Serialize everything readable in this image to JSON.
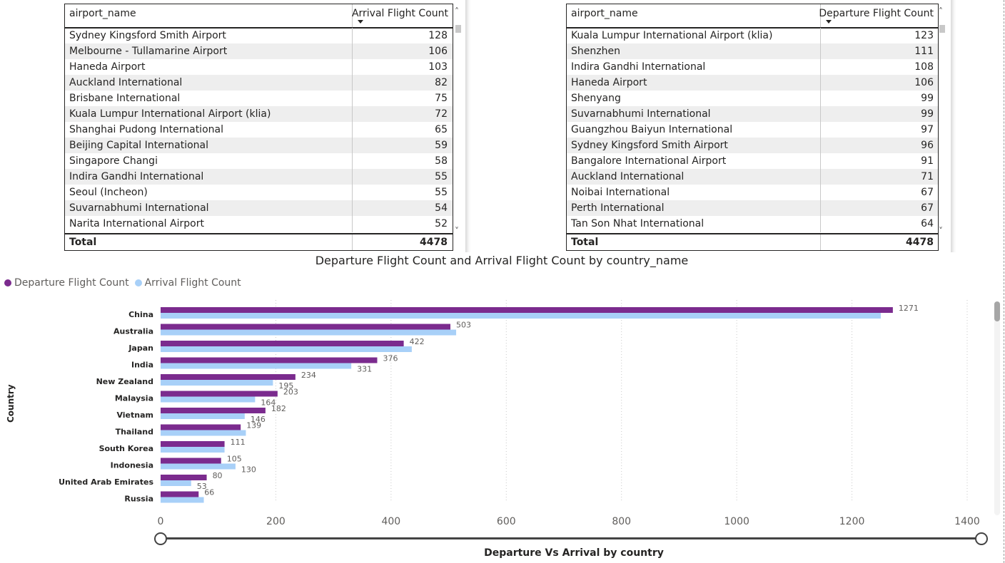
{
  "arrival_table": {
    "col_name": "airport_name",
    "col_count": "Arrival Flight Count",
    "rows": [
      {
        "name": "Sydney Kingsford Smith Airport",
        "value": "128"
      },
      {
        "name": "Melbourne - Tullamarine Airport",
        "value": "106"
      },
      {
        "name": "Haneda Airport",
        "value": "103"
      },
      {
        "name": "Auckland International",
        "value": "82"
      },
      {
        "name": "Brisbane International",
        "value": "75"
      },
      {
        "name": "Kuala Lumpur International Airport (klia)",
        "value": "72"
      },
      {
        "name": "Shanghai Pudong International",
        "value": "65"
      },
      {
        "name": "Beijing Capital International",
        "value": "59"
      },
      {
        "name": "Singapore Changi",
        "value": "58"
      },
      {
        "name": "Indira Gandhi International",
        "value": "55"
      },
      {
        "name": "Seoul (Incheon)",
        "value": "55"
      },
      {
        "name": "Suvarnabhumi International",
        "value": "54"
      },
      {
        "name": "Narita International Airport",
        "value": "52"
      }
    ],
    "total_label": "Total",
    "total_value": "4478"
  },
  "departure_table": {
    "col_name": "airport_name",
    "col_count": "Departure Flight Count",
    "rows": [
      {
        "name": "Kuala Lumpur International Airport (klia)",
        "value": "123"
      },
      {
        "name": "Shenzhen",
        "value": "111"
      },
      {
        "name": "Indira Gandhi International",
        "value": "108"
      },
      {
        "name": "Haneda Airport",
        "value": "106"
      },
      {
        "name": "Shenyang",
        "value": "99"
      },
      {
        "name": "Suvarnabhumi International",
        "value": "99"
      },
      {
        "name": "Guangzhou Baiyun International",
        "value": "97"
      },
      {
        "name": "Sydney Kingsford Smith Airport",
        "value": "96"
      },
      {
        "name": "Bangalore International Airport",
        "value": "91"
      },
      {
        "name": "Auckland International",
        "value": "71"
      },
      {
        "name": "Noibai International",
        "value": "67"
      },
      {
        "name": "Perth International",
        "value": "67"
      },
      {
        "name": "Tan Son Nhat International",
        "value": "64"
      }
    ],
    "total_label": "Total",
    "total_value": "4478"
  },
  "scroll_glyphs": {
    "up": "˄",
    "down": "˅"
  },
  "colors": {
    "departure": "#7b2b8e",
    "arrival": "#a8d0f8"
  },
  "chart_data": {
    "type": "bar",
    "orientation": "horizontal",
    "title": "Departure Flight Count and Arrival Flight Count by country_name",
    "xlabel": "Departure Vs Arrival by country",
    "ylabel": "Country",
    "xlim": [
      0,
      1400
    ],
    "xticks": [
      0,
      200,
      400,
      600,
      800,
      1000,
      1200,
      1400
    ],
    "grid": true,
    "legend_position": "top-left",
    "categories": [
      "China",
      "Australia",
      "Japan",
      "India",
      "New Zealand",
      "Malaysia",
      "Vietnam",
      "Thailand",
      "South Korea",
      "Indonesia",
      "United Arab Emirates",
      "Russia"
    ],
    "series": [
      {
        "name": "Departure Flight Count",
        "values": [
          1271,
          503,
          422,
          376,
          234,
          203,
          182,
          139,
          111,
          105,
          80,
          66
        ]
      },
      {
        "name": "Arrival Flight Count",
        "values": [
          1250,
          513,
          436,
          331,
          195,
          164,
          146,
          148,
          111,
          130,
          53,
          75
        ]
      }
    ],
    "data_labels": [
      [
        1271,
        503,
        422,
        376,
        234,
        203,
        182,
        139,
        111,
        105,
        80,
        66
      ],
      [
        null,
        null,
        null,
        331,
        195,
        164,
        146,
        null,
        null,
        130,
        53,
        null
      ]
    ]
  }
}
